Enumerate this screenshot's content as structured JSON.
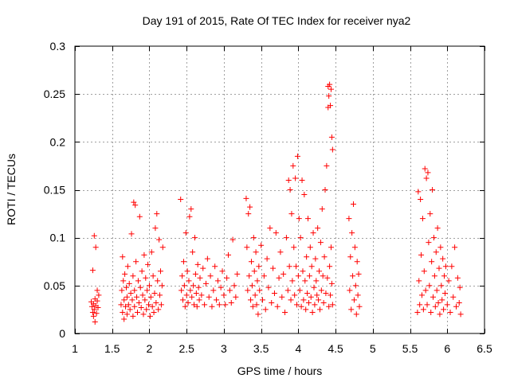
{
  "chart_data": {
    "type": "scatter",
    "title": "Day 191 of 2015, Rate Of TEC Index for receiver nya2",
    "xlabel": "GPS time / hours",
    "ylabel": "ROTI / TECUs",
    "xlim": [
      1,
      6.5
    ],
    "ylim": [
      0,
      0.3
    ],
    "grid": true,
    "marker": "+",
    "xticks": [
      1,
      1.5,
      2,
      2.5,
      3,
      3.5,
      4,
      4.5,
      5,
      5.5,
      6,
      6.5
    ],
    "xtick_labels": [
      "1",
      "1.5",
      "2",
      "2.5",
      "3",
      "3.5",
      "4",
      "4.5",
      "5",
      "5.5",
      "6",
      "6.5"
    ],
    "yticks": [
      0,
      0.05,
      0.1,
      0.15,
      0.2,
      0.25,
      0.3
    ],
    "ytick_labels": [
      "0",
      "0.05",
      "0.1",
      "0.15",
      "0.2",
      "0.25",
      "0.3"
    ],
    "series": [
      {
        "name": "nya2",
        "color": "#ff0000",
        "points": [
          [
            1.22,
            0.033
          ],
          [
            1.23,
            0.028
          ],
          [
            1.24,
            0.022
          ],
          [
            1.24,
            0.066
          ],
          [
            1.25,
            0.031
          ],
          [
            1.25,
            0.018
          ],
          [
            1.26,
            0.102
          ],
          [
            1.26,
            0.025
          ],
          [
            1.27,
            0.036
          ],
          [
            1.27,
            0.012
          ],
          [
            1.28,
            0.09
          ],
          [
            1.28,
            0.029
          ],
          [
            1.29,
            0.021
          ],
          [
            1.3,
            0.034
          ],
          [
            1.3,
            0.045
          ],
          [
            1.31,
            0.027
          ],
          [
            1.32,
            0.04
          ],
          [
            1.62,
            0.03
          ],
          [
            1.63,
            0.045
          ],
          [
            1.64,
            0.08
          ],
          [
            1.64,
            0.022
          ],
          [
            1.65,
            0.055
          ],
          [
            1.66,
            0.035
          ],
          [
            1.66,
            0.015
          ],
          [
            1.67,
            0.062
          ],
          [
            1.68,
            0.028
          ],
          [
            1.69,
            0.048
          ],
          [
            1.7,
            0.02
          ],
          [
            1.7,
            0.038
          ],
          [
            1.71,
            0.07
          ],
          [
            1.72,
            0.03
          ],
          [
            1.73,
            0.052
          ],
          [
            1.74,
            0.025
          ],
          [
            1.75,
            0.042
          ],
          [
            1.76,
            0.104
          ],
          [
            1.77,
            0.035
          ],
          [
            1.78,
            0.06
          ],
          [
            1.78,
            0.018
          ],
          [
            1.79,
            0.137
          ],
          [
            1.8,
            0.045
          ],
          [
            1.8,
            0.028
          ],
          [
            1.81,
            0.134
          ],
          [
            1.82,
            0.075
          ],
          [
            1.83,
            0.038
          ],
          [
            1.84,
            0.022
          ],
          [
            1.85,
            0.055
          ],
          [
            1.86,
            0.032
          ],
          [
            1.87,
            0.122
          ],
          [
            1.88,
            0.048
          ],
          [
            1.89,
            0.027
          ],
          [
            1.9,
            0.065
          ],
          [
            1.91,
            0.04
          ],
          [
            1.92,
            0.02
          ],
          [
            1.93,
            0.082
          ],
          [
            1.94,
            0.035
          ],
          [
            1.95,
            0.058
          ],
          [
            1.96,
            0.025
          ],
          [
            1.97,
            0.045
          ],
          [
            1.98,
            0.072
          ],
          [
            1.99,
            0.03
          ],
          [
            2.0,
            0.05
          ],
          [
            2.01,
            0.018
          ],
          [
            2.02,
            0.038
          ],
          [
            2.03,
            0.085
          ],
          [
            2.04,
            0.028
          ],
          [
            2.05,
            0.06
          ],
          [
            2.06,
            0.022
          ],
          [
            2.07,
            0.042
          ],
          [
            2.08,
            0.11
          ],
          [
            2.09,
            0.032
          ],
          [
            2.1,
            0.125
          ],
          [
            2.11,
            0.055
          ],
          [
            2.12,
            0.025
          ],
          [
            2.13,
            0.098
          ],
          [
            2.14,
            0.04
          ],
          [
            2.15,
            0.065
          ],
          [
            2.16,
            0.03
          ],
          [
            2.17,
            0.05
          ],
          [
            2.18,
            0.09
          ],
          [
            2.42,
            0.14
          ],
          [
            2.43,
            0.045
          ],
          [
            2.44,
            0.06
          ],
          [
            2.45,
            0.035
          ],
          [
            2.46,
            0.075
          ],
          [
            2.47,
            0.05
          ],
          [
            2.48,
            0.028
          ],
          [
            2.49,
            0.105
          ],
          [
            2.5,
            0.04
          ],
          [
            2.51,
            0.065
          ],
          [
            2.52,
            0.032
          ],
          [
            2.53,
            0.055
          ],
          [
            2.54,
            0.122
          ],
          [
            2.55,
            0.045
          ],
          [
            2.56,
            0.13
          ],
          [
            2.57,
            0.038
          ],
          [
            2.58,
            0.085
          ],
          [
            2.59,
            0.05
          ],
          [
            2.6,
            0.03
          ],
          [
            2.61,
            0.1
          ],
          [
            2.62,
            0.062
          ],
          [
            2.63,
            0.042
          ],
          [
            2.64,
            0.028
          ],
          [
            2.65,
            0.072
          ],
          [
            2.66,
            0.048
          ],
          [
            2.67,
            0.035
          ],
          [
            2.68,
            0.058
          ],
          [
            2.7,
            0.04
          ],
          [
            2.72,
            0.068
          ],
          [
            2.74,
            0.03
          ],
          [
            2.76,
            0.052
          ],
          [
            2.78,
            0.078
          ],
          [
            2.8,
            0.038
          ],
          [
            2.82,
            0.06
          ],
          [
            2.84,
            0.028
          ],
          [
            2.86,
            0.045
          ],
          [
            2.88,
            0.07
          ],
          [
            2.9,
            0.035
          ],
          [
            2.92,
            0.055
          ],
          [
            2.94,
            0.03
          ],
          [
            2.96,
            0.048
          ],
          [
            2.98,
            0.065
          ],
          [
            3.0,
            0.04
          ],
          [
            3.02,
            0.03
          ],
          [
            3.04,
            0.058
          ],
          [
            3.06,
            0.082
          ],
          [
            3.08,
            0.045
          ],
          [
            3.1,
            0.032
          ],
          [
            3.12,
            0.098
          ],
          [
            3.14,
            0.05
          ],
          [
            3.16,
            0.038
          ],
          [
            3.18,
            0.062
          ],
          [
            3.3,
            0.141
          ],
          [
            3.31,
            0.09
          ],
          [
            3.32,
            0.045
          ],
          [
            3.33,
            0.125
          ],
          [
            3.34,
            0.06
          ],
          [
            3.35,
            0.132
          ],
          [
            3.36,
            0.035
          ],
          [
            3.37,
            0.075
          ],
          [
            3.38,
            0.05
          ],
          [
            3.39,
            0.028
          ],
          [
            3.4,
            0.1
          ],
          [
            3.41,
            0.065
          ],
          [
            3.42,
            0.04
          ],
          [
            3.43,
            0.085
          ],
          [
            3.44,
            0.03
          ],
          [
            3.45,
            0.055
          ],
          [
            3.46,
            0.02
          ],
          [
            3.47,
            0.07
          ],
          [
            3.48,
            0.045
          ],
          [
            3.5,
            0.092
          ],
          [
            3.52,
            0.035
          ],
          [
            3.54,
            0.06
          ],
          [
            3.56,
            0.025
          ],
          [
            3.58,
            0.078
          ],
          [
            3.6,
            0.048
          ],
          [
            3.62,
            0.11
          ],
          [
            3.64,
            0.032
          ],
          [
            3.66,
            0.068
          ],
          [
            3.68,
            0.042
          ],
          [
            3.7,
            0.105
          ],
          [
            3.72,
            0.028
          ],
          [
            3.74,
            0.058
          ],
          [
            3.76,
            0.085
          ],
          [
            3.78,
            0.038
          ],
          [
            3.8,
            0.062
          ],
          [
            3.82,
            0.022
          ],
          [
            3.84,
            0.1
          ],
          [
            3.86,
            0.045
          ],
          [
            3.87,
            0.16
          ],
          [
            3.88,
            0.07
          ],
          [
            3.89,
            0.15
          ],
          [
            3.9,
            0.035
          ],
          [
            3.91,
            0.125
          ],
          [
            3.92,
            0.055
          ],
          [
            3.93,
            0.175
          ],
          [
            3.94,
            0.09
          ],
          [
            3.95,
            0.04
          ],
          [
            3.96,
            0.162
          ],
          [
            3.97,
            0.07
          ],
          [
            3.98,
            0.03
          ],
          [
            3.99,
            0.185
          ],
          [
            4.0,
            0.06
          ],
          [
            4.01,
            0.12
          ],
          [
            4.02,
            0.045
          ],
          [
            4.03,
            0.1
          ],
          [
            4.04,
            0.028
          ],
          [
            4.05,
            0.16
          ],
          [
            4.06,
            0.065
          ],
          [
            4.07,
            0.035
          ],
          [
            4.08,
            0.145
          ],
          [
            4.09,
            0.055
          ],
          [
            4.1,
            0.025
          ],
          [
            4.11,
            0.08
          ],
          [
            4.12,
            0.042
          ],
          [
            4.13,
            0.12
          ],
          [
            4.14,
            0.032
          ],
          [
            4.15,
            0.06
          ],
          [
            4.16,
            0.09
          ],
          [
            4.17,
            0.038
          ],
          [
            4.18,
            0.07
          ],
          [
            4.19,
            0.022
          ],
          [
            4.2,
            0.105
          ],
          [
            4.21,
            0.048
          ],
          [
            4.22,
            0.03
          ],
          [
            4.23,
            0.078
          ],
          [
            4.24,
            0.055
          ],
          [
            4.25,
            0.04
          ],
          [
            4.26,
            0.11
          ],
          [
            4.27,
            0.035
          ],
          [
            4.28,
            0.065
          ],
          [
            4.29,
            0.025
          ],
          [
            4.3,
            0.095
          ],
          [
            4.31,
            0.045
          ],
          [
            4.32,
            0.13
          ],
          [
            4.33,
            0.06
          ],
          [
            4.34,
            0.032
          ],
          [
            4.35,
            0.08
          ],
          [
            4.36,
            0.15
          ],
          [
            4.37,
            0.042
          ],
          [
            4.38,
            0.175
          ],
          [
            4.39,
            0.058
          ],
          [
            4.4,
            0.236
          ],
          [
            4.4,
            0.258
          ],
          [
            4.41,
            0.028
          ],
          [
            4.41,
            0.248
          ],
          [
            4.42,
            0.26
          ],
          [
            4.42,
            0.07
          ],
          [
            4.43,
            0.238
          ],
          [
            4.43,
            0.04
          ],
          [
            4.44,
            0.255
          ],
          [
            4.44,
            0.09
          ],
          [
            4.45,
            0.205
          ],
          [
            4.45,
            0.052
          ],
          [
            4.46,
            0.192
          ],
          [
            4.46,
            0.03
          ],
          [
            4.68,
            0.12
          ],
          [
            4.69,
            0.045
          ],
          [
            4.7,
            0.08
          ],
          [
            4.71,
            0.025
          ],
          [
            4.72,
            0.105
          ],
          [
            4.73,
            0.06
          ],
          [
            4.74,
            0.135
          ],
          [
            4.75,
            0.035
          ],
          [
            4.76,
            0.09
          ],
          [
            4.77,
            0.05
          ],
          [
            4.78,
            0.02
          ],
          [
            4.79,
            0.075
          ],
          [
            4.8,
            0.04
          ],
          [
            4.81,
            0.062
          ],
          [
            4.82,
            0.028
          ],
          [
            5.6,
            0.022
          ],
          [
            5.61,
            0.148
          ],
          [
            5.62,
            0.055
          ],
          [
            5.63,
            0.03
          ],
          [
            5.64,
            0.14
          ],
          [
            5.65,
            0.082
          ],
          [
            5.66,
            0.04
          ],
          [
            5.67,
            0.12
          ],
          [
            5.68,
            0.025
          ],
          [
            5.69,
            0.065
          ],
          [
            5.7,
            0.172
          ],
          [
            5.71,
            0.045
          ],
          [
            5.72,
            0.162
          ],
          [
            5.73,
            0.03
          ],
          [
            5.74,
            0.168
          ],
          [
            5.75,
            0.095
          ],
          [
            5.76,
            0.05
          ],
          [
            5.77,
            0.125
          ],
          [
            5.78,
            0.022
          ],
          [
            5.79,
            0.075
          ],
          [
            5.8,
            0.15
          ],
          [
            5.81,
            0.038
          ],
          [
            5.82,
            0.1
          ],
          [
            5.83,
            0.06
          ],
          [
            5.84,
            0.028
          ],
          [
            5.85,
            0.085
          ],
          [
            5.86,
            0.045
          ],
          [
            5.87,
            0.11
          ],
          [
            5.88,
            0.032
          ],
          [
            5.89,
            0.068
          ],
          [
            5.9,
            0.02
          ],
          [
            5.91,
            0.09
          ],
          [
            5.92,
            0.05
          ],
          [
            5.93,
            0.035
          ],
          [
            5.94,
            0.078
          ],
          [
            5.95,
            0.025
          ],
          [
            5.96,
            0.06
          ],
          [
            5.97,
            0.042
          ],
          [
            5.98,
            0.07
          ],
          [
            6.0,
            0.03
          ],
          [
            6.02,
            0.055
          ],
          [
            6.04,
            0.022
          ],
          [
            6.06,
            0.07
          ],
          [
            6.08,
            0.038
          ],
          [
            6.1,
            0.09
          ],
          [
            6.12,
            0.028
          ],
          [
            6.14,
            0.058
          ],
          [
            6.16,
            0.032
          ],
          [
            6.17,
            0.048
          ],
          [
            6.18,
            0.02
          ]
        ]
      }
    ]
  }
}
